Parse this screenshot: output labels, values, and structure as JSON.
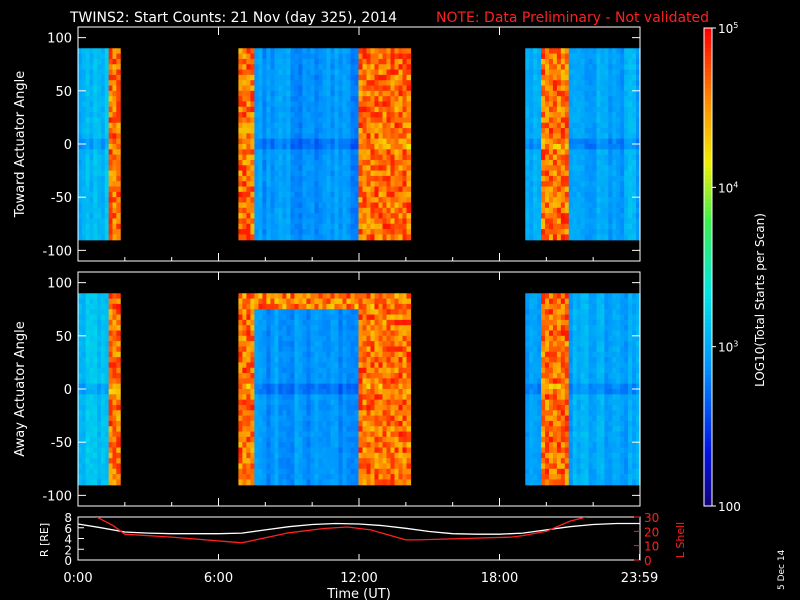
{
  "title": "TWINS2: Start Counts: 21 Nov (day 325), 2014",
  "note": "NOTE: Data Preliminary - Not validated",
  "date_stamp": "5 Dec 14",
  "colors": {
    "background": "#000000",
    "axes": "#ffffff",
    "note": "#ff0000",
    "radius_line": "#ffffff",
    "lshell_line": "#ff2020"
  },
  "chart_data": [
    {
      "type": "heatmap",
      "panel": "top",
      "ylabel": "Toward Actuator Angle",
      "ylim": [
        -110,
        110
      ],
      "yticks": [
        -100,
        -50,
        0,
        50,
        100
      ],
      "data_yrange": [
        -90,
        90
      ],
      "xlim_hours": [
        0,
        24
      ],
      "segments": [
        {
          "start": 0.0,
          "end": 1.8,
          "level": 3.1,
          "hot_band": [
            1.3,
            1.8
          ]
        },
        {
          "start": 6.85,
          "end": 14.2,
          "level": 2.9,
          "hot_band": [
            12.0,
            14.2
          ],
          "hot_edge": [
            6.85,
            7.6
          ]
        },
        {
          "start": 19.1,
          "end": 24.0,
          "level": 3.0,
          "hot_band": [
            19.7,
            21.0
          ]
        }
      ]
    },
    {
      "type": "heatmap",
      "panel": "middle",
      "ylabel": "Away Actuator Angle",
      "ylim": [
        -110,
        110
      ],
      "yticks": [
        -100,
        -50,
        0,
        50,
        100
      ],
      "data_yrange": [
        -90,
        90
      ],
      "xlim_hours": [
        0,
        24
      ],
      "segments": [
        {
          "start": 0.0,
          "end": 1.8,
          "level": 3.1,
          "hot_band": [
            1.3,
            1.8
          ]
        },
        {
          "start": 6.85,
          "end": 14.2,
          "level": 2.9,
          "hot_band": [
            12.0,
            14.2
          ],
          "hot_edge": [
            6.85,
            7.6
          ],
          "hot_top": [
            75,
            90
          ]
        },
        {
          "start": 19.1,
          "end": 24.0,
          "level": 3.0,
          "hot_band": [
            19.7,
            21.0
          ]
        }
      ]
    },
    {
      "type": "line",
      "panel": "bottom",
      "ylabel_left": "R [RE]",
      "ylim_left": [
        0,
        8
      ],
      "yticks_left": [
        0,
        2,
        4,
        6,
        8
      ],
      "ylabel_right": "L Shell",
      "ylim_right": [
        0,
        30
      ],
      "yticks_right": [
        0,
        10,
        20,
        30
      ],
      "xlabel": "Time (UT)",
      "xticks": [
        "0:00",
        "6:00",
        "12:00",
        "18:00",
        "23:59"
      ],
      "xtick_hours": [
        0,
        6,
        12,
        18,
        23.98
      ],
      "series": [
        {
          "name": "R",
          "axis": "left",
          "x": [
            0,
            1,
            2,
            3,
            4,
            5,
            6,
            7,
            8,
            9,
            10,
            11,
            12,
            13,
            14,
            15,
            16,
            17,
            18,
            19,
            20,
            21,
            22,
            23,
            24
          ],
          "y": [
            6.7,
            6.0,
            5.2,
            5.0,
            4.9,
            4.9,
            4.9,
            5.0,
            5.6,
            6.2,
            6.6,
            6.8,
            6.7,
            6.4,
            5.9,
            5.3,
            4.9,
            4.8,
            4.8,
            5.0,
            5.6,
            6.2,
            6.6,
            6.8,
            6.8
          ]
        },
        {
          "name": "L Shell",
          "axis": "right",
          "x": [
            0.8,
            1.5,
            2.0,
            4.0,
            7.0,
            9.0,
            10.5,
            11.5,
            12.5,
            14.0,
            14.5,
            18.5,
            19.0,
            20.0,
            21.0,
            21.7
          ],
          "y": [
            30,
            24,
            18,
            16,
            12,
            19,
            22,
            23,
            21,
            14,
            14,
            16,
            17,
            20,
            27,
            30
          ]
        }
      ]
    },
    {
      "type": "colorbar",
      "label": "LOG10(Total Starts per Scan)",
      "range": [
        2,
        5
      ],
      "ticks": [
        {
          "value": 2,
          "label": "100"
        },
        {
          "value": 3,
          "label": "10^3"
        },
        {
          "value": 4,
          "label": "10^4"
        },
        {
          "value": 5,
          "label": "10^5"
        }
      ]
    }
  ]
}
